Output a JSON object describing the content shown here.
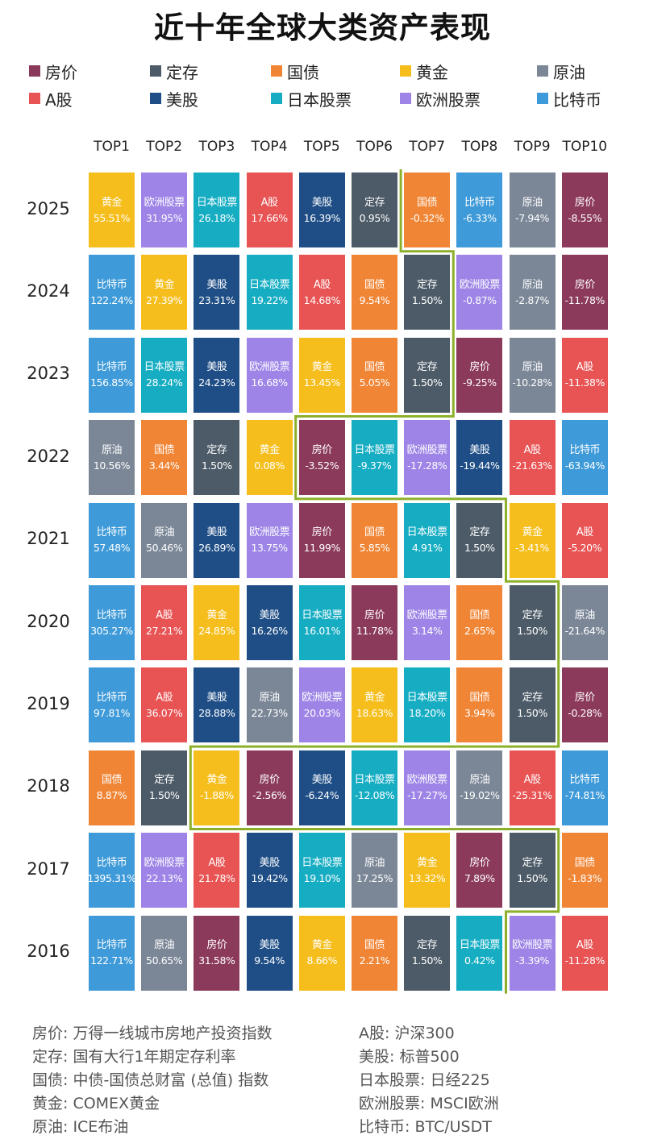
{
  "title": "近十年全球大类资产表现",
  "legend": [
    {
      "key": "房价",
      "label": "房价",
      "color": "#8b3a5b"
    },
    {
      "key": "定存",
      "label": "定存",
      "color": "#4d5b68"
    },
    {
      "key": "国债",
      "label": "国债",
      "color": "#f08535"
    },
    {
      "key": "黄金",
      "label": "黄金",
      "color": "#f5be1c"
    },
    {
      "key": "原油",
      "label": "原油",
      "color": "#7b8797"
    },
    {
      "key": "A股",
      "label": "A股",
      "color": "#e85354"
    },
    {
      "key": "美股",
      "label": "美股",
      "color": "#1f4e86"
    },
    {
      "key": "日本股票",
      "label": "日本股票",
      "color": "#16adc3"
    },
    {
      "key": "欧洲股票",
      "label": "欧洲股票",
      "color": "#9d84e6"
    },
    {
      "key": "比特币",
      "label": "比特币",
      "color": "#3e9ad8"
    }
  ],
  "notes": {
    "left": [
      "房价: 万得一线城市房地产投资指数",
      "定存: 国有大行1年期定存利率",
      "国债: 中债-国债总财富 (总值) 指数",
      "黄金: COMEX黄金",
      "原油: ICE布油"
    ],
    "right": [
      "A股: 沪深300",
      "美股: 标普500",
      "日本股票: 日经225",
      "欧洲股票: MSCI欧洲",
      "比特币: BTC/USDT"
    ]
  },
  "chart_data": {
    "type": "table",
    "columns": [
      "TOP1",
      "TOP2",
      "TOP3",
      "TOP4",
      "TOP5",
      "TOP6",
      "TOP7",
      "TOP8",
      "TOP9",
      "TOP10"
    ],
    "rows": [
      {
        "year": "2025",
        "cells": [
          {
            "asset": "黄金",
            "value": "55.51%"
          },
          {
            "asset": "欧洲股票",
            "value": "31.95%"
          },
          {
            "asset": "日本股票",
            "value": "26.18%"
          },
          {
            "asset": "A股",
            "value": "17.66%"
          },
          {
            "asset": "美股",
            "value": "16.39%"
          },
          {
            "asset": "定存",
            "value": "0.95%"
          },
          {
            "asset": "国债",
            "value": "-0.32%"
          },
          {
            "asset": "比特币",
            "value": "-6.33%"
          },
          {
            "asset": "原油",
            "value": "-7.94%"
          },
          {
            "asset": "房价",
            "value": "-8.55%"
          }
        ]
      },
      {
        "year": "2024",
        "cells": [
          {
            "asset": "比特币",
            "value": "122.24%"
          },
          {
            "asset": "黄金",
            "value": "27.39%"
          },
          {
            "asset": "美股",
            "value": "23.31%"
          },
          {
            "asset": "日本股票",
            "value": "19.22%"
          },
          {
            "asset": "A股",
            "value": "14.68%"
          },
          {
            "asset": "国债",
            "value": "9.54%"
          },
          {
            "asset": "定存",
            "value": "1.50%"
          },
          {
            "asset": "欧洲股票",
            "value": "-0.87%"
          },
          {
            "asset": "原油",
            "value": "-2.87%"
          },
          {
            "asset": "房价",
            "value": "-11.78%"
          }
        ]
      },
      {
        "year": "2023",
        "cells": [
          {
            "asset": "比特币",
            "value": "156.85%"
          },
          {
            "asset": "日本股票",
            "value": "28.24%"
          },
          {
            "asset": "美股",
            "value": "24.23%"
          },
          {
            "asset": "欧洲股票",
            "value": "16.68%"
          },
          {
            "asset": "黄金",
            "value": "13.45%"
          },
          {
            "asset": "国债",
            "value": "5.05%"
          },
          {
            "asset": "定存",
            "value": "1.50%"
          },
          {
            "asset": "房价",
            "value": "-9.25%"
          },
          {
            "asset": "原油",
            "value": "-10.28%"
          },
          {
            "asset": "A股",
            "value": "-11.38%"
          }
        ]
      },
      {
        "year": "2022",
        "cells": [
          {
            "asset": "原油",
            "value": "10.56%"
          },
          {
            "asset": "国债",
            "value": "3.44%"
          },
          {
            "asset": "定存",
            "value": "1.50%"
          },
          {
            "asset": "黄金",
            "value": "0.08%"
          },
          {
            "asset": "房价",
            "value": "-3.52%"
          },
          {
            "asset": "日本股票",
            "value": "-9.37%"
          },
          {
            "asset": "欧洲股票",
            "value": "-17.28%"
          },
          {
            "asset": "美股",
            "value": "-19.44%"
          },
          {
            "asset": "A股",
            "value": "-21.63%"
          },
          {
            "asset": "比特币",
            "value": "-63.94%"
          }
        ]
      },
      {
        "year": "2021",
        "cells": [
          {
            "asset": "比特币",
            "value": "57.48%"
          },
          {
            "asset": "原油",
            "value": "50.46%"
          },
          {
            "asset": "美股",
            "value": "26.89%"
          },
          {
            "asset": "欧洲股票",
            "value": "13.75%"
          },
          {
            "asset": "房价",
            "value": "11.99%"
          },
          {
            "asset": "国债",
            "value": "5.85%"
          },
          {
            "asset": "日本股票",
            "value": "4.91%"
          },
          {
            "asset": "定存",
            "value": "1.50%"
          },
          {
            "asset": "黄金",
            "value": "-3.41%"
          },
          {
            "asset": "A股",
            "value": "-5.20%"
          }
        ]
      },
      {
        "year": "2020",
        "cells": [
          {
            "asset": "比特币",
            "value": "305.27%"
          },
          {
            "asset": "A股",
            "value": "27.21%"
          },
          {
            "asset": "黄金",
            "value": "24.85%"
          },
          {
            "asset": "美股",
            "value": "16.26%"
          },
          {
            "asset": "日本股票",
            "value": "16.01%"
          },
          {
            "asset": "房价",
            "value": "11.78%"
          },
          {
            "asset": "欧洲股票",
            "value": "3.14%"
          },
          {
            "asset": "国债",
            "value": "2.65%"
          },
          {
            "asset": "定存",
            "value": "1.50%"
          },
          {
            "asset": "原油",
            "value": "-21.64%"
          }
        ]
      },
      {
        "year": "2019",
        "cells": [
          {
            "asset": "比特币",
            "value": "97.81%"
          },
          {
            "asset": "A股",
            "value": "36.07%"
          },
          {
            "asset": "美股",
            "value": "28.88%"
          },
          {
            "asset": "原油",
            "value": "22.73%"
          },
          {
            "asset": "欧洲股票",
            "value": "20.03%"
          },
          {
            "asset": "黄金",
            "value": "18.63%"
          },
          {
            "asset": "日本股票",
            "value": "18.20%"
          },
          {
            "asset": "国债",
            "value": "3.94%"
          },
          {
            "asset": "定存",
            "value": "1.50%"
          },
          {
            "asset": "房价",
            "value": "-0.28%"
          }
        ]
      },
      {
        "year": "2018",
        "cells": [
          {
            "asset": "国债",
            "value": "8.87%"
          },
          {
            "asset": "定存",
            "value": "1.50%"
          },
          {
            "asset": "黄金",
            "value": "-1.88%"
          },
          {
            "asset": "房价",
            "value": "-2.56%"
          },
          {
            "asset": "美股",
            "value": "-6.24%"
          },
          {
            "asset": "日本股票",
            "value": "-12.08%"
          },
          {
            "asset": "欧洲股票",
            "value": "-17.27%"
          },
          {
            "asset": "原油",
            "value": "-19.02%"
          },
          {
            "asset": "A股",
            "value": "-25.31%"
          },
          {
            "asset": "比特币",
            "value": "-74.81%"
          }
        ]
      },
      {
        "year": "2017",
        "cells": [
          {
            "asset": "比特币",
            "value": "1395.31%"
          },
          {
            "asset": "欧洲股票",
            "value": "22.13%"
          },
          {
            "asset": "A股",
            "value": "21.78%"
          },
          {
            "asset": "美股",
            "value": "19.42%"
          },
          {
            "asset": "日本股票",
            "value": "19.10%"
          },
          {
            "asset": "原油",
            "value": "17.25%"
          },
          {
            "asset": "黄金",
            "value": "13.32%"
          },
          {
            "asset": "房价",
            "value": "7.89%"
          },
          {
            "asset": "定存",
            "value": "1.50%"
          },
          {
            "asset": "国债",
            "value": "-1.83%"
          }
        ]
      },
      {
        "year": "2016",
        "cells": [
          {
            "asset": "比特币",
            "value": "122.71%"
          },
          {
            "asset": "原油",
            "value": "50.65%"
          },
          {
            "asset": "房价",
            "value": "31.58%"
          },
          {
            "asset": "美股",
            "value": "9.54%"
          },
          {
            "asset": "黄金",
            "value": "8.66%"
          },
          {
            "asset": "国债",
            "value": "2.21%"
          },
          {
            "asset": "定存",
            "value": "1.50%"
          },
          {
            "asset": "日本股票",
            "value": "0.42%"
          },
          {
            "asset": "欧洲股票",
            "value": "-3.39%"
          },
          {
            "asset": "A股",
            "value": "-11.28%"
          }
        ]
      }
    ],
    "boundary_color": "#8db02a"
  }
}
